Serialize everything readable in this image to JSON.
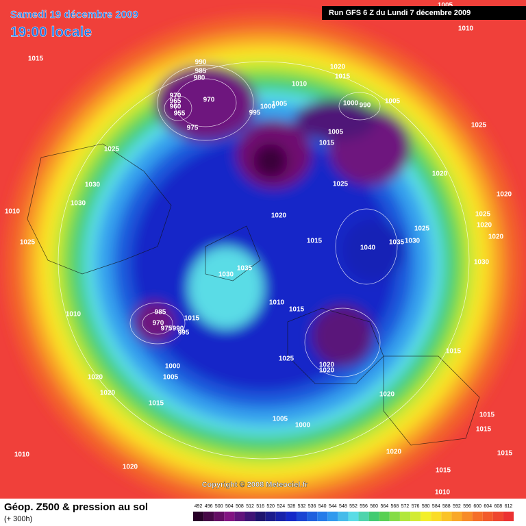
{
  "header": {
    "date": "Samedi 19 décembre 2009",
    "time": "19:00 locale",
    "run": "Run GFS 6 Z du Lundi 7 décembre 2009"
  },
  "footer": {
    "title": "Géop. Z500 & pression au sol",
    "lead": "(+ 300h)",
    "copyright": "Copyright © 2008 Meteociel.fr"
  },
  "colorbar": {
    "values": [
      492,
      496,
      500,
      504,
      508,
      512,
      516,
      520,
      524,
      528,
      532,
      536,
      540,
      544,
      548,
      552,
      556,
      560,
      564,
      568,
      572,
      576,
      580,
      584,
      588,
      592,
      596,
      600,
      604,
      608,
      612
    ]
  },
  "isobars": {
    "labels": [
      1005,
      1010,
      1015,
      990,
      985,
      980,
      1020,
      1015,
      1010,
      970,
      965,
      960,
      955,
      970,
      975,
      995,
      1000,
      1005,
      1000,
      990,
      1005,
      1005,
      1015,
      1025,
      1025,
      1025,
      1020,
      1030,
      1030,
      1020,
      1010,
      1020,
      1025,
      1020,
      1020,
      1025,
      1015,
      1040,
      1035,
      1030,
      1025,
      1035,
      1030,
      1030,
      1010,
      1015,
      1010,
      985,
      970,
      975,
      990,
      995,
      1015,
      1025,
      1020,
      1020,
      1015,
      1000,
      1005,
      1020,
      1020,
      1020,
      1015,
      1005,
      1000,
      1015,
      1015,
      1010,
      1020,
      1015,
      1020,
      1015,
      1010
    ]
  }
}
